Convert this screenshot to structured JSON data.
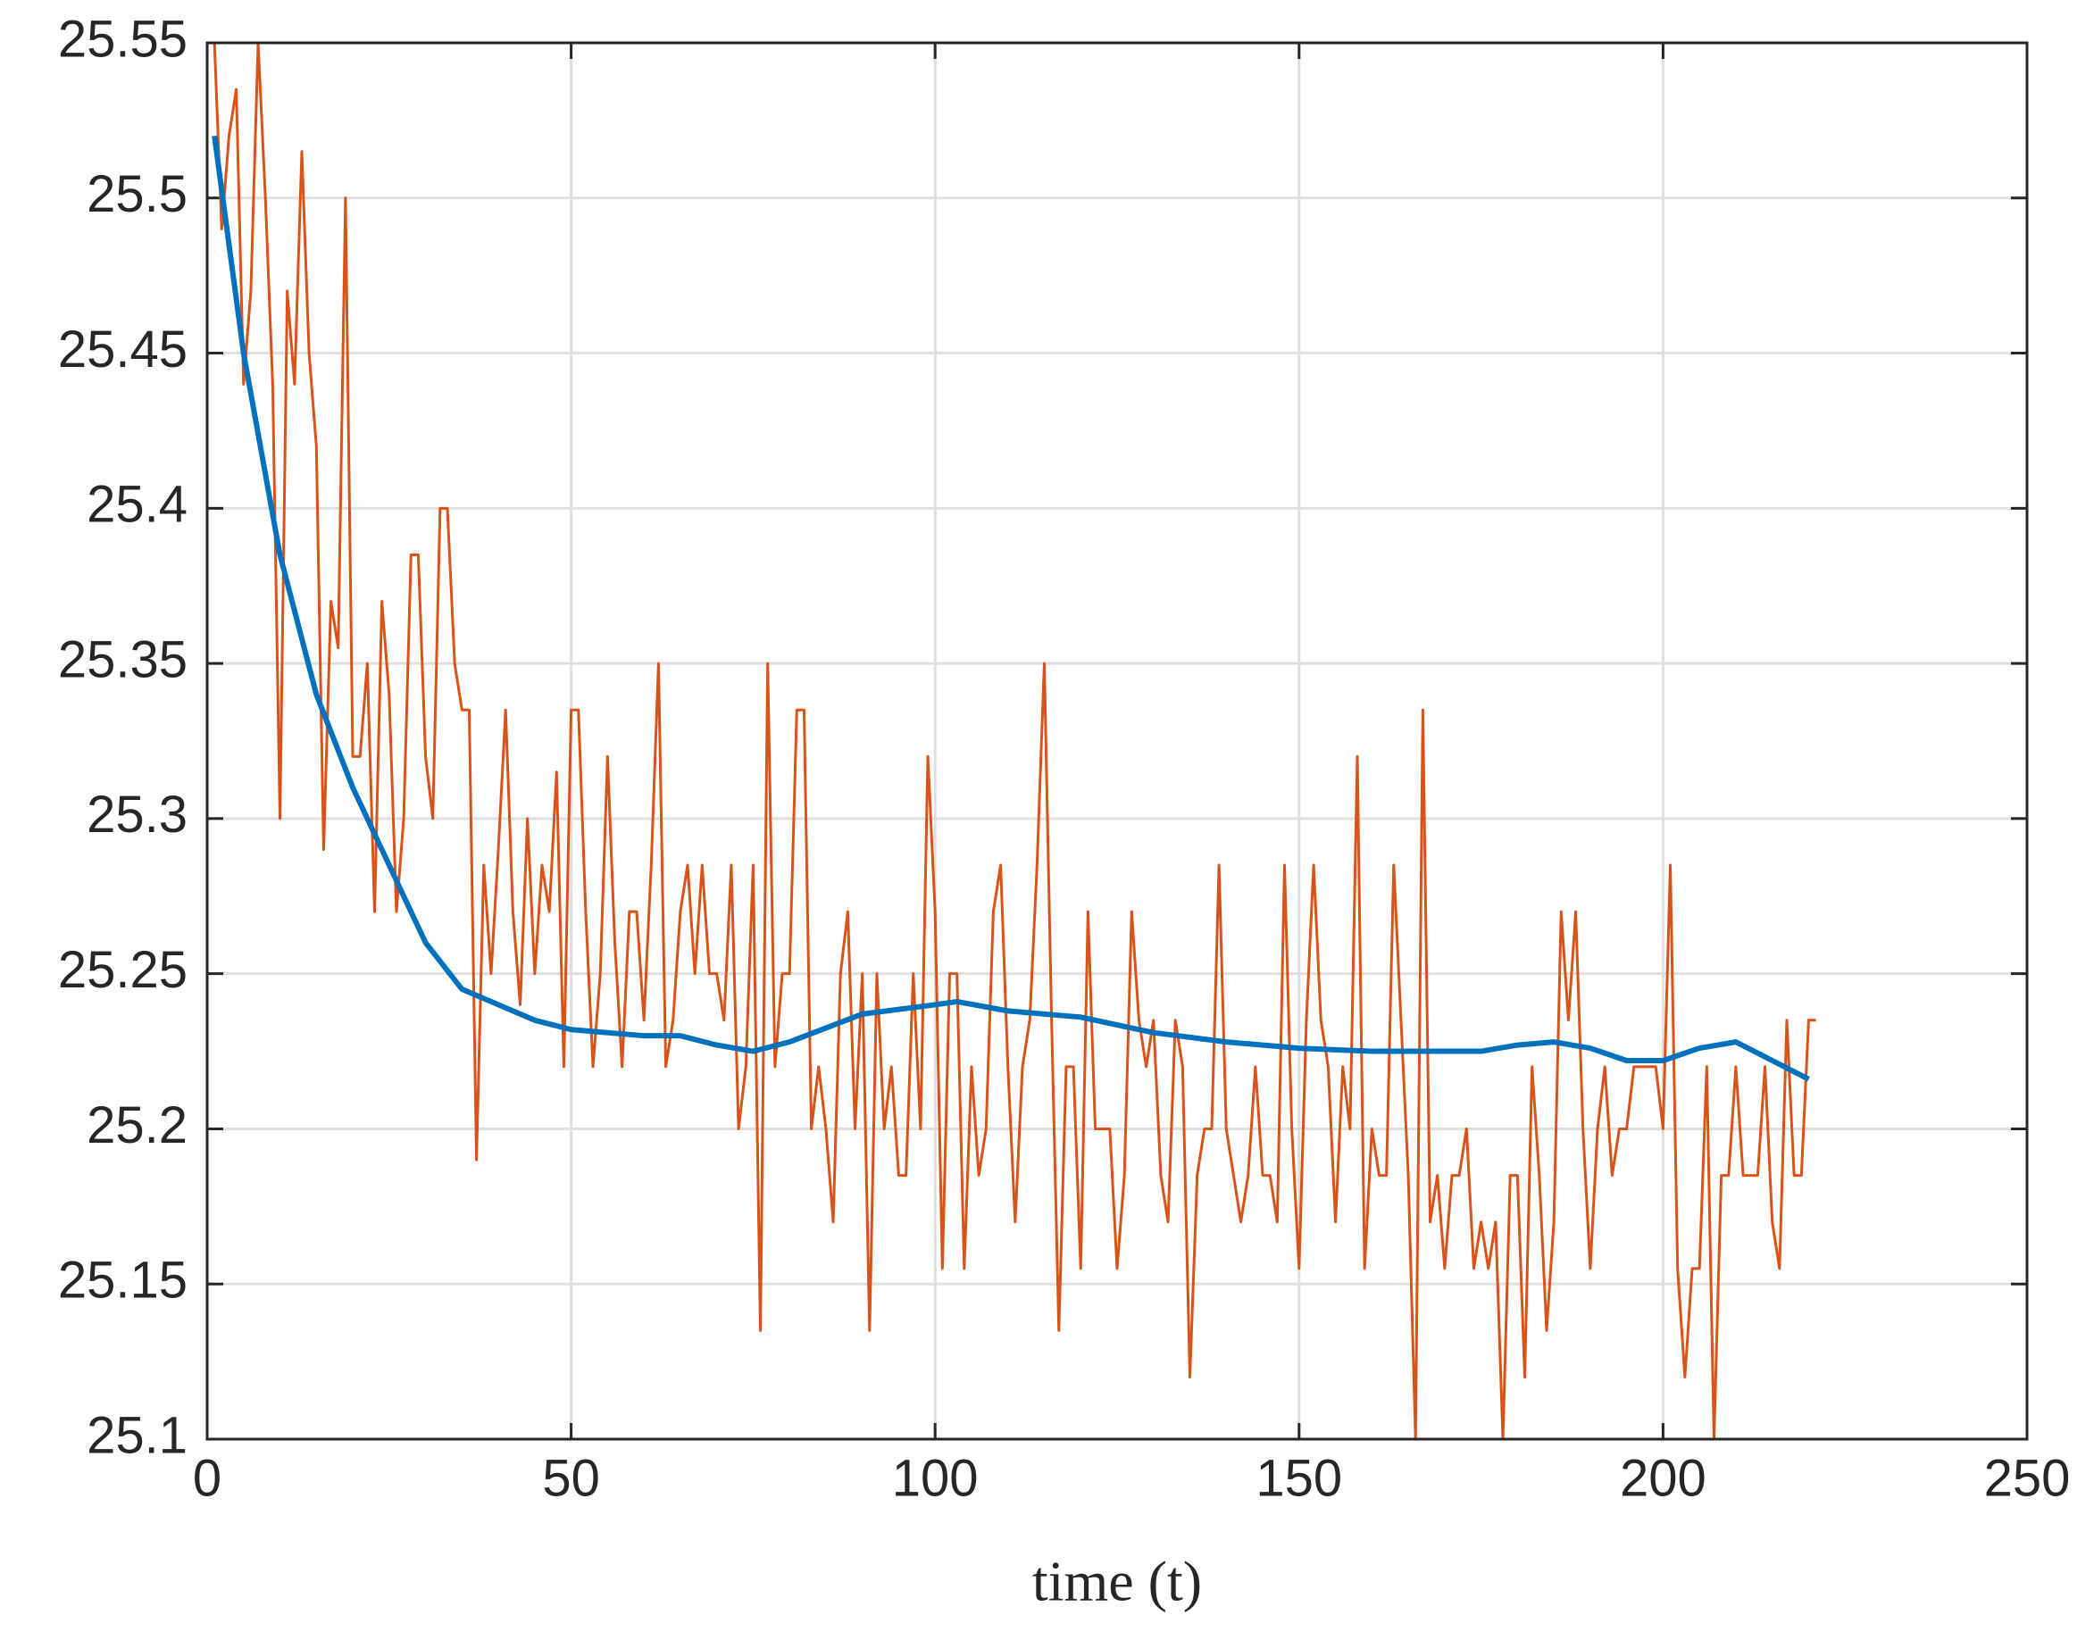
{
  "chart_data": {
    "type": "line",
    "xlabel": "time (t)",
    "xlim": [
      0,
      250
    ],
    "xticks": [
      0,
      50,
      100,
      150,
      200,
      250
    ],
    "ylim": [
      25.1,
      25.55
    ],
    "yticks": [
      25.1,
      25.15,
      25.2,
      25.25,
      25.3,
      25.35,
      25.4,
      25.45,
      25.5,
      25.55
    ],
    "grid": true,
    "series": [
      {
        "color": "#d95319",
        "x": [
          1,
          2,
          3,
          4,
          5,
          6,
          7,
          8,
          9,
          10,
          11,
          12,
          13,
          14,
          15,
          16,
          17,
          18,
          19,
          20,
          21,
          22,
          23,
          24,
          25,
          26,
          27,
          28,
          29,
          30,
          31,
          32,
          33,
          34,
          35,
          36,
          37,
          38,
          39,
          40,
          41,
          42,
          43,
          44,
          45,
          46,
          47,
          48,
          49,
          50,
          51,
          52,
          53,
          54,
          55,
          56,
          57,
          58,
          59,
          60,
          61,
          62,
          63,
          64,
          65,
          66,
          67,
          68,
          69,
          70,
          71,
          72,
          73,
          74,
          75,
          76,
          77,
          78,
          79,
          80,
          81,
          82,
          83,
          84,
          85,
          86,
          87,
          88,
          89,
          90,
          91,
          92,
          93,
          94,
          95,
          96,
          97,
          98,
          99,
          100,
          101,
          102,
          103,
          104,
          105,
          106,
          107,
          108,
          109,
          110,
          111,
          112,
          113,
          114,
          115,
          116,
          117,
          118,
          119,
          120,
          121,
          122,
          123,
          124,
          125,
          126,
          127,
          128,
          129,
          130,
          131,
          132,
          133,
          134,
          135,
          136,
          137,
          138,
          139,
          140,
          141,
          142,
          143,
          144,
          145,
          146,
          147,
          148,
          149,
          150,
          151,
          152,
          153,
          154,
          155,
          156,
          157,
          158,
          159,
          160,
          161,
          162,
          163,
          164,
          165,
          166,
          167,
          168,
          169,
          170,
          171,
          172,
          173,
          174,
          175,
          176,
          177,
          178,
          179,
          180,
          181,
          182,
          183,
          184,
          185,
          186,
          187,
          188,
          189,
          190,
          191,
          192,
          193,
          194,
          195,
          196,
          197,
          198,
          199,
          200,
          201,
          202,
          203,
          204,
          205,
          206,
          207,
          208,
          209,
          210,
          211,
          212,
          213,
          214,
          215,
          216,
          217,
          218,
          219,
          220,
          221
        ],
        "values": [
          25.55,
          25.49,
          25.52,
          25.535,
          25.44,
          25.47,
          25.55,
          25.5,
          25.44,
          25.3,
          25.47,
          25.44,
          25.515,
          25.45,
          25.42,
          25.29,
          25.37,
          25.355,
          25.5,
          25.32,
          25.32,
          25.35,
          25.27,
          25.37,
          25.34,
          25.27,
          25.3,
          25.385,
          25.385,
          25.32,
          25.3,
          25.4,
          25.4,
          25.35,
          25.335,
          25.335,
          25.19,
          25.285,
          25.25,
          25.29,
          25.335,
          25.27,
          25.24,
          25.3,
          25.25,
          25.285,
          25.27,
          25.315,
          25.22,
          25.335,
          25.335,
          25.27,
          25.22,
          25.25,
          25.32,
          25.26,
          25.22,
          25.27,
          25.27,
          25.235,
          25.285,
          25.35,
          25.22,
          25.235,
          25.27,
          25.285,
          25.25,
          25.285,
          25.25,
          25.25,
          25.235,
          25.285,
          25.2,
          25.22,
          25.285,
          25.135,
          25.35,
          25.22,
          25.25,
          25.25,
          25.335,
          25.335,
          25.2,
          25.22,
          25.2,
          25.17,
          25.25,
          25.27,
          25.2,
          25.25,
          25.135,
          25.25,
          25.2,
          25.22,
          25.185,
          25.185,
          25.25,
          25.2,
          25.32,
          25.27,
          25.155,
          25.25,
          25.25,
          25.155,
          25.22,
          25.185,
          25.2,
          25.27,
          25.285,
          25.22,
          25.17,
          25.22,
          25.235,
          25.285,
          25.35,
          25.235,
          25.135,
          25.22,
          25.22,
          25.155,
          25.27,
          25.2,
          25.2,
          25.2,
          25.155,
          25.185,
          25.27,
          25.235,
          25.22,
          25.235,
          25.185,
          25.17,
          25.235,
          25.22,
          25.12,
          25.185,
          25.2,
          25.2,
          25.285,
          25.2,
          25.185,
          25.17,
          25.185,
          25.22,
          25.185,
          25.185,
          25.17,
          25.285,
          25.2,
          25.155,
          25.235,
          25.285,
          25.235,
          25.22,
          25.17,
          25.22,
          25.2,
          25.32,
          25.155,
          25.2,
          25.185,
          25.185,
          25.285,
          25.235,
          25.185,
          25.1,
          25.335,
          25.17,
          25.185,
          25.155,
          25.185,
          25.185,
          25.2,
          25.155,
          25.17,
          25.155,
          25.17,
          25.1,
          25.185,
          25.185,
          25.12,
          25.22,
          25.185,
          25.135,
          25.17,
          25.27,
          25.235,
          25.27,
          25.2,
          25.155,
          25.2,
          25.22,
          25.185,
          25.2,
          25.2,
          25.22,
          25.22,
          25.22,
          25.22,
          25.2,
          25.285,
          25.155,
          25.12,
          25.155,
          25.155,
          25.22,
          25.1,
          25.185,
          25.185,
          25.22,
          25.185,
          25.185,
          25.185,
          25.22,
          25.17,
          25.155,
          25.235,
          25.185,
          25.185,
          25.235,
          25.235
        ]
      },
      {
        "color": "#0072bd",
        "x": [
          1,
          5,
          10,
          15,
          20,
          25,
          30,
          35,
          40,
          45,
          50,
          60,
          65,
          70,
          75,
          80,
          90,
          100,
          103,
          110,
          120,
          130,
          140,
          150,
          160,
          170,
          175,
          180,
          185,
          190,
          195,
          200,
          205,
          210,
          215,
          220
        ],
        "values": [
          25.52,
          25.45,
          25.385,
          25.34,
          25.31,
          25.285,
          25.26,
          25.245,
          25.24,
          25.235,
          25.232,
          25.23,
          25.23,
          25.227,
          25.225,
          25.228,
          25.237,
          25.24,
          25.241,
          25.238,
          25.236,
          25.231,
          25.228,
          25.226,
          25.225,
          25.225,
          25.225,
          25.227,
          25.228,
          25.226,
          25.222,
          25.222,
          25.226,
          25.228,
          25.222,
          25.216
        ]
      }
    ]
  }
}
